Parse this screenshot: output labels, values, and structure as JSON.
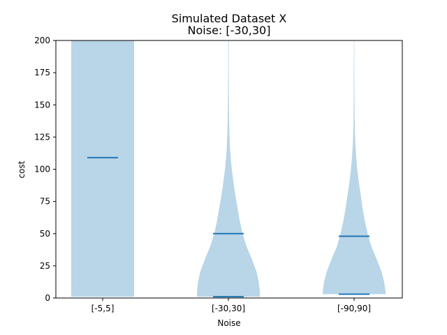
{
  "chart_data": {
    "type": "violin",
    "title": "Simulated Dataset X",
    "subtitle": "Noise: [-30,30]",
    "xlabel": "Noise",
    "ylabel": "cost",
    "ylim": [
      0,
      200
    ],
    "yticks": [
      0,
      25,
      50,
      75,
      100,
      125,
      150,
      175,
      200
    ],
    "categories": [
      "[-5,5]",
      "[-30,30]",
      "[-90,90]"
    ],
    "violin_color": "#b9d5e8",
    "line_color": "#1f77b4",
    "series": [
      {
        "category": "[-5,5]",
        "min": 1,
        "mean": 109,
        "max": 200,
        "profile": [
          [
            1,
            1.0
          ],
          [
            10,
            1.0
          ],
          [
            50,
            1.0
          ],
          [
            100,
            1.0
          ],
          [
            150,
            1.0
          ],
          [
            200,
            1.0
          ]
        ]
      },
      {
        "category": "[-30,30]",
        "min": 1,
        "mean": 50,
        "max": 200,
        "profile": [
          [
            0,
            1.0
          ],
          [
            5,
            1.0
          ],
          [
            12,
            0.97
          ],
          [
            20,
            0.9
          ],
          [
            30,
            0.75
          ],
          [
            40,
            0.58
          ],
          [
            50,
            0.45
          ],
          [
            60,
            0.36
          ],
          [
            70,
            0.29
          ],
          [
            80,
            0.22
          ],
          [
            90,
            0.16
          ],
          [
            100,
            0.11
          ],
          [
            110,
            0.07
          ],
          [
            120,
            0.045
          ],
          [
            130,
            0.03
          ],
          [
            140,
            0.02
          ],
          [
            160,
            0.013
          ],
          [
            180,
            0.01
          ],
          [
            200,
            0.008
          ]
        ]
      },
      {
        "category": "[-90,90]",
        "min": 3,
        "mean": 48,
        "max": 200,
        "profile": [
          [
            0,
            1.0
          ],
          [
            5,
            1.0
          ],
          [
            12,
            0.96
          ],
          [
            20,
            0.88
          ],
          [
            30,
            0.72
          ],
          [
            40,
            0.55
          ],
          [
            50,
            0.43
          ],
          [
            60,
            0.34
          ],
          [
            70,
            0.27
          ],
          [
            80,
            0.21
          ],
          [
            90,
            0.15
          ],
          [
            100,
            0.1
          ],
          [
            110,
            0.065
          ],
          [
            120,
            0.04
          ],
          [
            130,
            0.025
          ],
          [
            140,
            0.017
          ],
          [
            160,
            0.011
          ],
          [
            180,
            0.008
          ],
          [
            200,
            0.006
          ]
        ]
      }
    ]
  }
}
